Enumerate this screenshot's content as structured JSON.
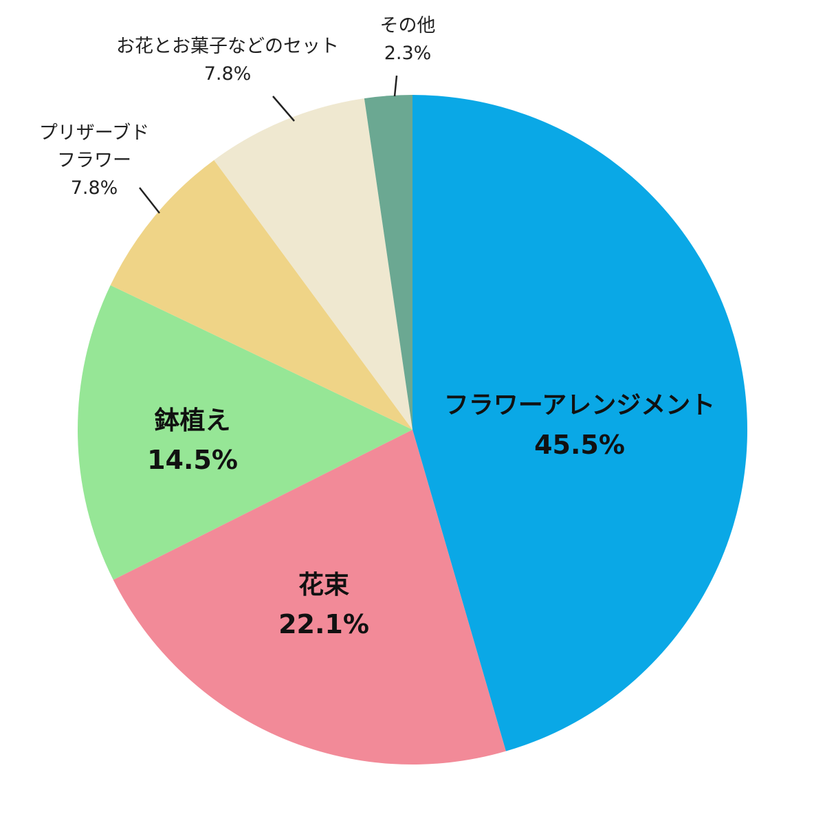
{
  "chart_data": {
    "type": "pie",
    "title": "",
    "start_angle_deg": 0,
    "direction": "clockwise",
    "center": [
      600,
      625
    ],
    "radius": 487,
    "slices": [
      {
        "label": "フラワーアレンジメント",
        "value": 45.5,
        "pct_label": "45.5%",
        "color": "#0AA8E6",
        "label_position": "inside"
      },
      {
        "label": "花束",
        "value": 22.1,
        "pct_label": "22.1%",
        "color": "#F28A98",
        "label_position": "inside"
      },
      {
        "label": "鉢植え",
        "value": 14.5,
        "pct_label": "14.5%",
        "color": "#96E696",
        "label_position": "inside"
      },
      {
        "label": "プリザーブドフラワー",
        "label_lines": [
          "プリザーブド",
          "フラワー"
        ],
        "value": 7.8,
        "pct_label": "7.8%",
        "color": "#EFD487",
        "label_position": "outside"
      },
      {
        "label": "お花とお菓子などのセット",
        "value": 7.8,
        "pct_label": "7.8%",
        "color": "#EFE8D0",
        "label_position": "outside"
      },
      {
        "label": "その他",
        "value": 2.3,
        "pct_label": "2.3%",
        "color": "#6BA892",
        "label_position": "outside"
      }
    ],
    "legend": null
  },
  "labels": {
    "arrangement": {
      "name": "フラワーアレンジメント",
      "pct": "45.5%"
    },
    "bouquet": {
      "name": "花束",
      "pct": "22.1%"
    },
    "potted": {
      "name": "鉢植え",
      "pct": "14.5%"
    },
    "preserved": {
      "line1": "プリザーブド",
      "line2": "フラワー",
      "pct": "7.8%"
    },
    "set": {
      "name": "お花とお菓子などのセット",
      "pct": "7.8%"
    },
    "other": {
      "name": "その他",
      "pct": "2.3%"
    }
  }
}
